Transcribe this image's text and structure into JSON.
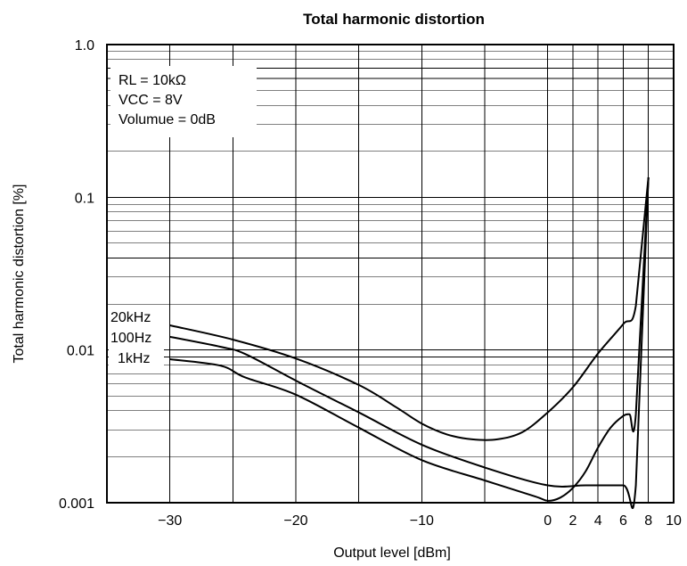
{
  "chart_data": {
    "type": "line",
    "title": "Total harmonic distortion",
    "xlabel": "Output level [dBm]",
    "ylabel": "Total harmonic distortion [%]",
    "x_scale": "linear",
    "y_scale": "log",
    "xlim": [
      -35,
      10
    ],
    "ylim": [
      0.001,
      1.0
    ],
    "x_ticks": [
      -30,
      -20,
      -10,
      0,
      2,
      4,
      6,
      8,
      10
    ],
    "x_tick_labels": [
      "−30",
      "−20",
      "−10",
      "0",
      "2",
      "4",
      "6",
      "8",
      "10"
    ],
    "y_ticks": [
      0.001,
      0.01,
      0.1,
      1.0
    ],
    "y_tick_labels": [
      "0.001",
      "0.01",
      "0.1",
      "1.0"
    ],
    "grid": true,
    "annotations": [
      "RL = 10kΩ",
      "VCC = 8V",
      "Volumue = 0dB"
    ],
    "series": [
      {
        "name": "20kHz",
        "x": [
          -30,
          -25,
          -20,
          -15,
          -12,
          -10,
          -8,
          -6,
          -4,
          -2,
          0,
          2,
          4,
          6,
          7,
          8
        ],
        "y": [
          0.0145,
          0.0117,
          0.0088,
          0.0059,
          0.0042,
          0.0033,
          0.0028,
          0.0026,
          0.0026,
          0.0029,
          0.0039,
          0.0057,
          0.0095,
          0.0148,
          0.0195,
          0.135
        ]
      },
      {
        "name": "100Hz",
        "x": [
          -30,
          -26,
          -24,
          -20,
          -15,
          -10,
          -5,
          0,
          3,
          6,
          7,
          8
        ],
        "y": [
          0.0122,
          0.0105,
          0.0094,
          0.0063,
          0.0039,
          0.0024,
          0.0017,
          0.0013,
          0.0013,
          0.0013,
          0.0013,
          0.135
        ]
      },
      {
        "name": "1kHz",
        "x": [
          -30,
          -26,
          -24,
          -20,
          -15,
          -10,
          -5,
          -1,
          0,
          1,
          2,
          3,
          4,
          5,
          6,
          6.5,
          7,
          8
        ],
        "y": [
          0.0087,
          0.0079,
          0.0066,
          0.0051,
          0.0031,
          0.0019,
          0.0014,
          0.0011,
          0.00103,
          0.00108,
          0.00125,
          0.0016,
          0.0023,
          0.0031,
          0.0037,
          0.0038,
          0.0038,
          0.135
        ]
      }
    ]
  }
}
